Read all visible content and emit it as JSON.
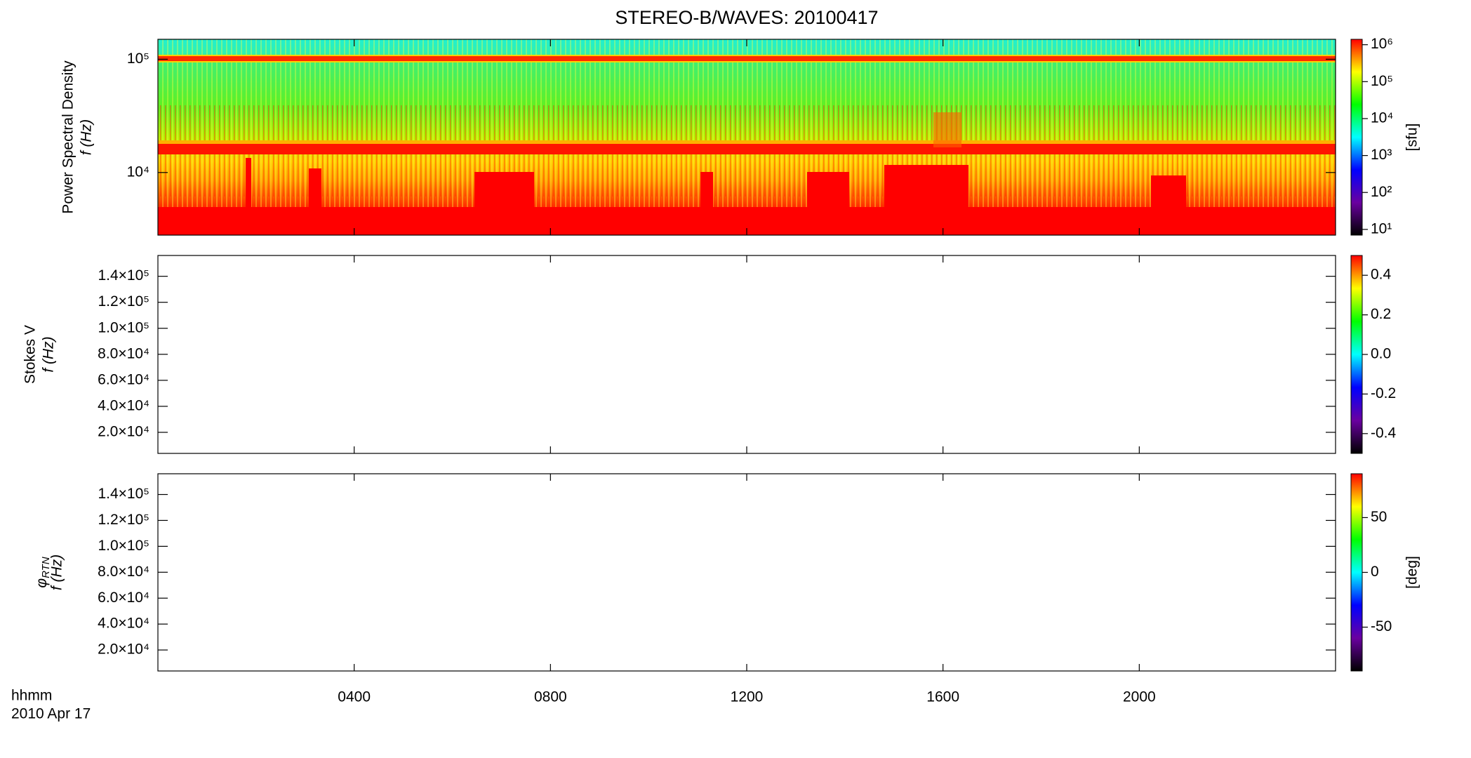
{
  "chart_data": [
    {
      "type": "spectrogram",
      "title": "STEREO-B/WAVES: 20100417",
      "ylabel": "Power Spectral Density",
      "ylabel2": "f (Hz)",
      "log_y": true,
      "ylim": [
        2800,
        150000
      ],
      "yticks": [
        {
          "value": 10000,
          "label": "10⁴"
        },
        {
          "value": 100000,
          "label": "10⁵"
        }
      ],
      "colorbar": {
        "label": "[sfu]",
        "log": true,
        "lim": [
          7,
          1400000
        ],
        "ticks": [
          {
            "value": 10,
            "label": "10¹"
          },
          {
            "value": 100,
            "label": "10²"
          },
          {
            "value": 1000,
            "label": "10³"
          },
          {
            "value": 10000,
            "label": "10⁴"
          },
          {
            "value": 100000,
            "label": "10⁵"
          },
          {
            "value": 1000000,
            "label": "10⁶"
          }
        ],
        "colors": [
          "#000000",
          "#6a00a0",
          "#0000ff",
          "#00ffff",
          "#00ff00",
          "#ffff00",
          "#ff0000"
        ]
      }
    },
    {
      "type": "spectrogram",
      "ylabel": "Stokes V",
      "ylabel2": "f (Hz)",
      "log_y": false,
      "ylim": [
        3800,
        156000
      ],
      "yticks": [
        {
          "value": 20000,
          "label": "2.0×10⁴"
        },
        {
          "value": 40000,
          "label": "4.0×10⁴"
        },
        {
          "value": 60000,
          "label": "6.0×10⁴"
        },
        {
          "value": 80000,
          "label": "8.0×10⁴"
        },
        {
          "value": 100000,
          "label": "1.0×10⁵"
        },
        {
          "value": 120000,
          "label": "1.2×10⁵"
        },
        {
          "value": 140000,
          "label": "1.4×10⁵"
        }
      ],
      "colorbar": {
        "log": false,
        "lim": [
          -0.5,
          0.5
        ],
        "ticks": [
          -0.4,
          -0.2,
          {
            "value": 0,
            "label": "0.0"
          },
          0.2,
          0.4
        ],
        "colors": [
          "#000000",
          "#6a00a0",
          "#0000ff",
          "#00ffff",
          "#00ff00",
          "#ffff00",
          "#ff0000"
        ]
      }
    },
    {
      "type": "spectrogram",
      "ylabel": "φ",
      "ylabel_sub": "RTN",
      "ylabel2": "f (Hz)",
      "log_y": false,
      "ylim": [
        3800,
        156000
      ],
      "yticks": [
        {
          "value": 20000,
          "label": "2.0×10⁴"
        },
        {
          "value": 40000,
          "label": "4.0×10⁴"
        },
        {
          "value": 60000,
          "label": "6.0×10⁴"
        },
        {
          "value": 80000,
          "label": "8.0×10⁴"
        },
        {
          "value": 100000,
          "label": "1.0×10⁵"
        },
        {
          "value": 120000,
          "label": "1.2×10⁵"
        },
        {
          "value": 140000,
          "label": "1.4×10⁵"
        }
      ],
      "colorbar": {
        "label": "[deg]",
        "log": false,
        "lim": [
          -90,
          90
        ],
        "ticks": [
          -50,
          0,
          50
        ],
        "colors": [
          "#000000",
          "#6a00a0",
          "#0000ff",
          "#00ffff",
          "#00ff00",
          "#ffff00",
          "#ff0000"
        ]
      },
      "xlabel": "hhmm",
      "date": "2010 Apr 17",
      "xlim": [
        0,
        24
      ],
      "xticks": [
        {
          "value": 4,
          "label": "0400"
        },
        {
          "value": 8,
          "label": "0800"
        },
        {
          "value": 12,
          "label": "1200"
        },
        {
          "value": 16,
          "label": "1600"
        },
        {
          "value": 20,
          "label": "2000"
        }
      ]
    }
  ]
}
